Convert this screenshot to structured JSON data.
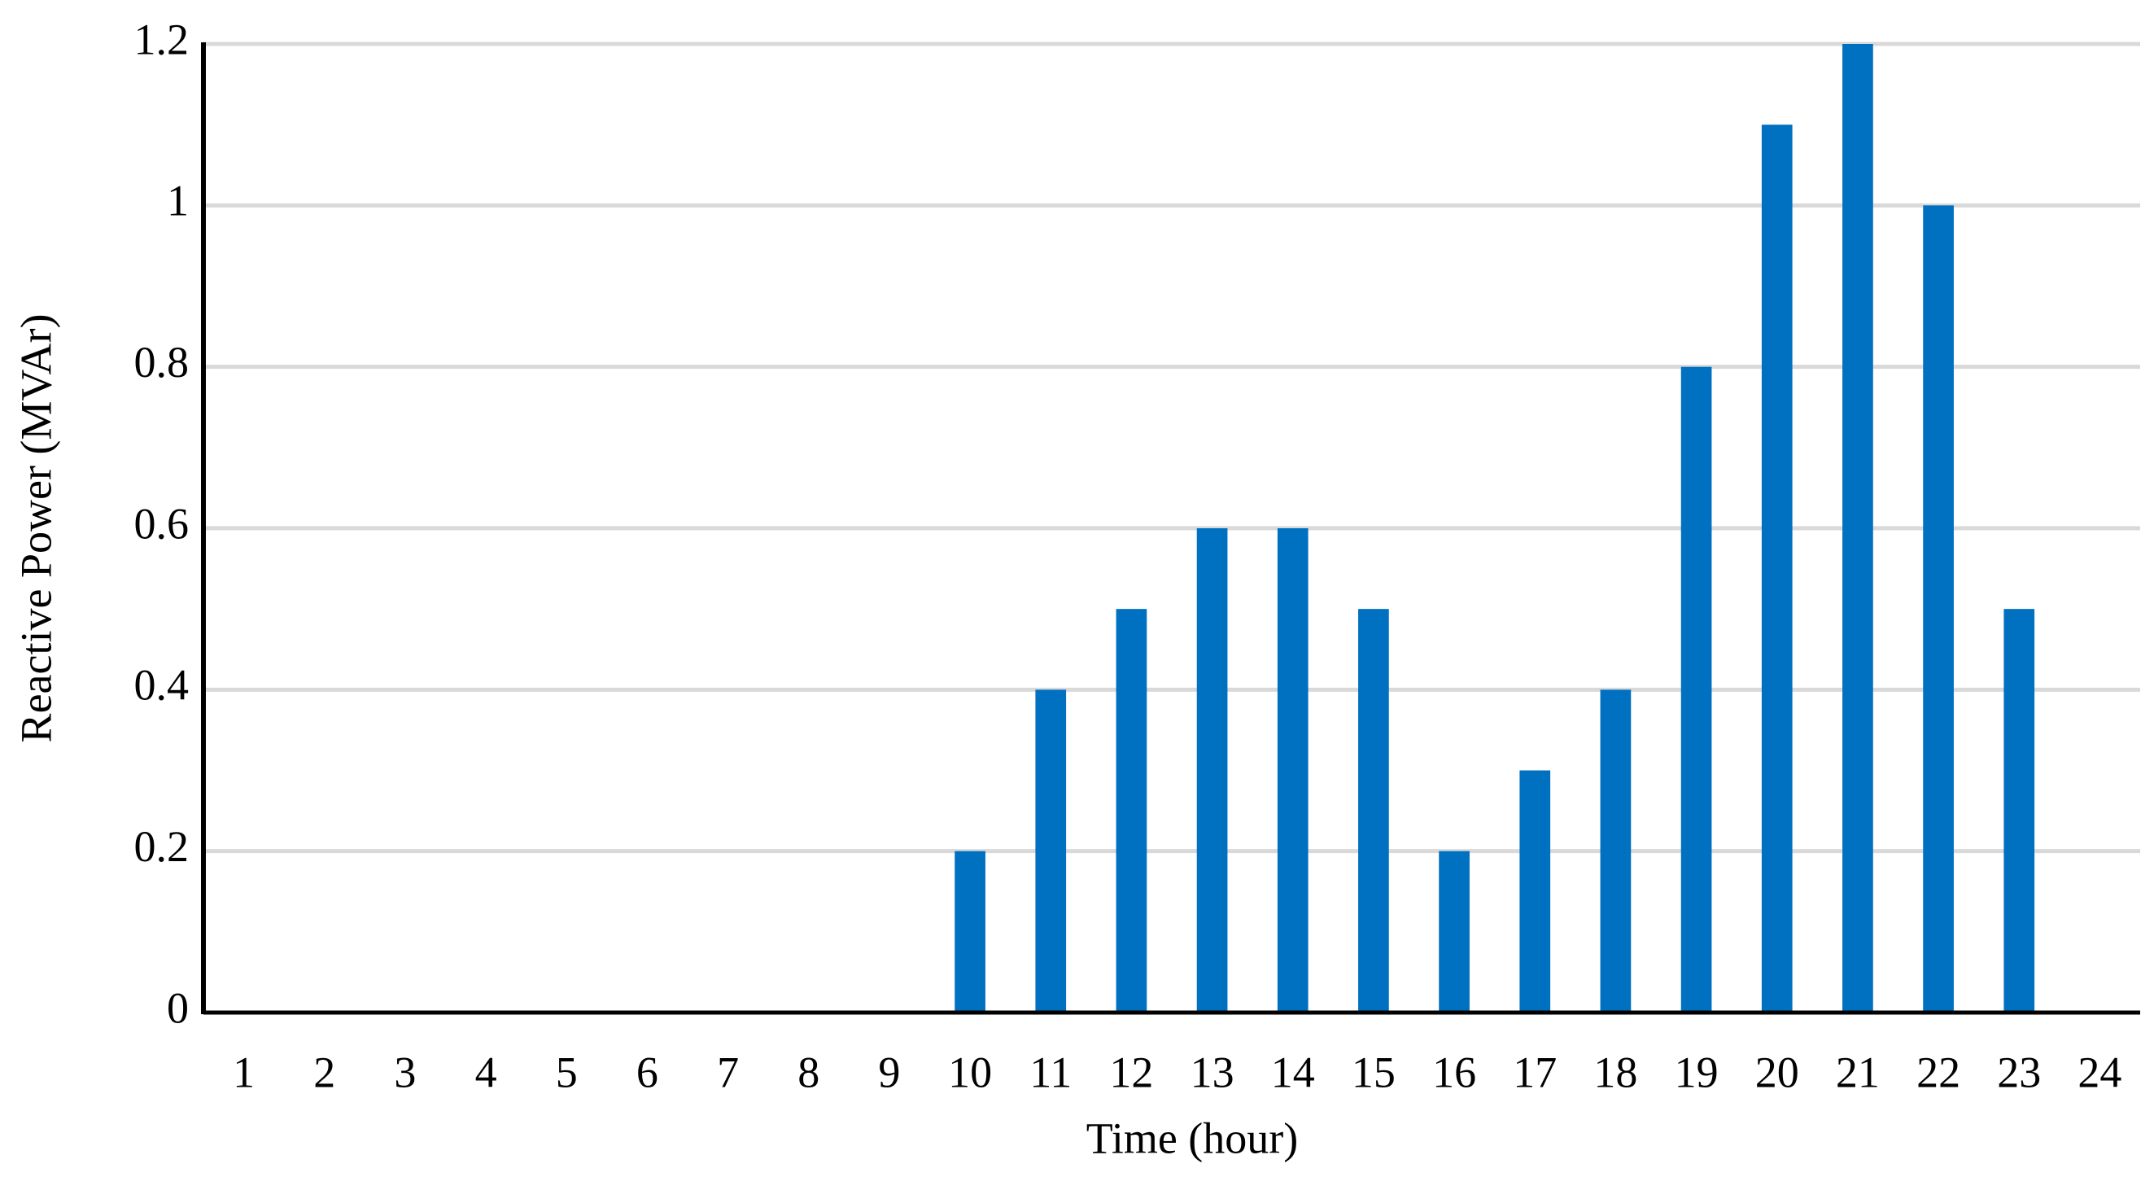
{
  "chart_data": {
    "type": "bar",
    "x_label": "Time (hour)",
    "y_label": "Reactive Power (MVAr)",
    "categories": [
      "1",
      "2",
      "3",
      "4",
      "5",
      "6",
      "7",
      "8",
      "9",
      "10",
      "11",
      "12",
      "13",
      "14",
      "15",
      "16",
      "17",
      "18",
      "19",
      "20",
      "21",
      "22",
      "23",
      "24"
    ],
    "values": [
      0,
      0,
      0,
      0,
      0,
      0,
      0,
      0,
      0,
      0.2,
      0.4,
      0.5,
      0.6,
      0.6,
      0.5,
      0.2,
      0.3,
      0.4,
      0.8,
      1.1,
      1.2,
      1,
      0.5,
      0
    ],
    "color": "#0070c0",
    "ylim": [
      0,
      1.2
    ],
    "yticks": [
      0,
      0.2,
      0.4,
      0.6,
      0.8,
      1,
      1.2
    ],
    "grid": true
  }
}
